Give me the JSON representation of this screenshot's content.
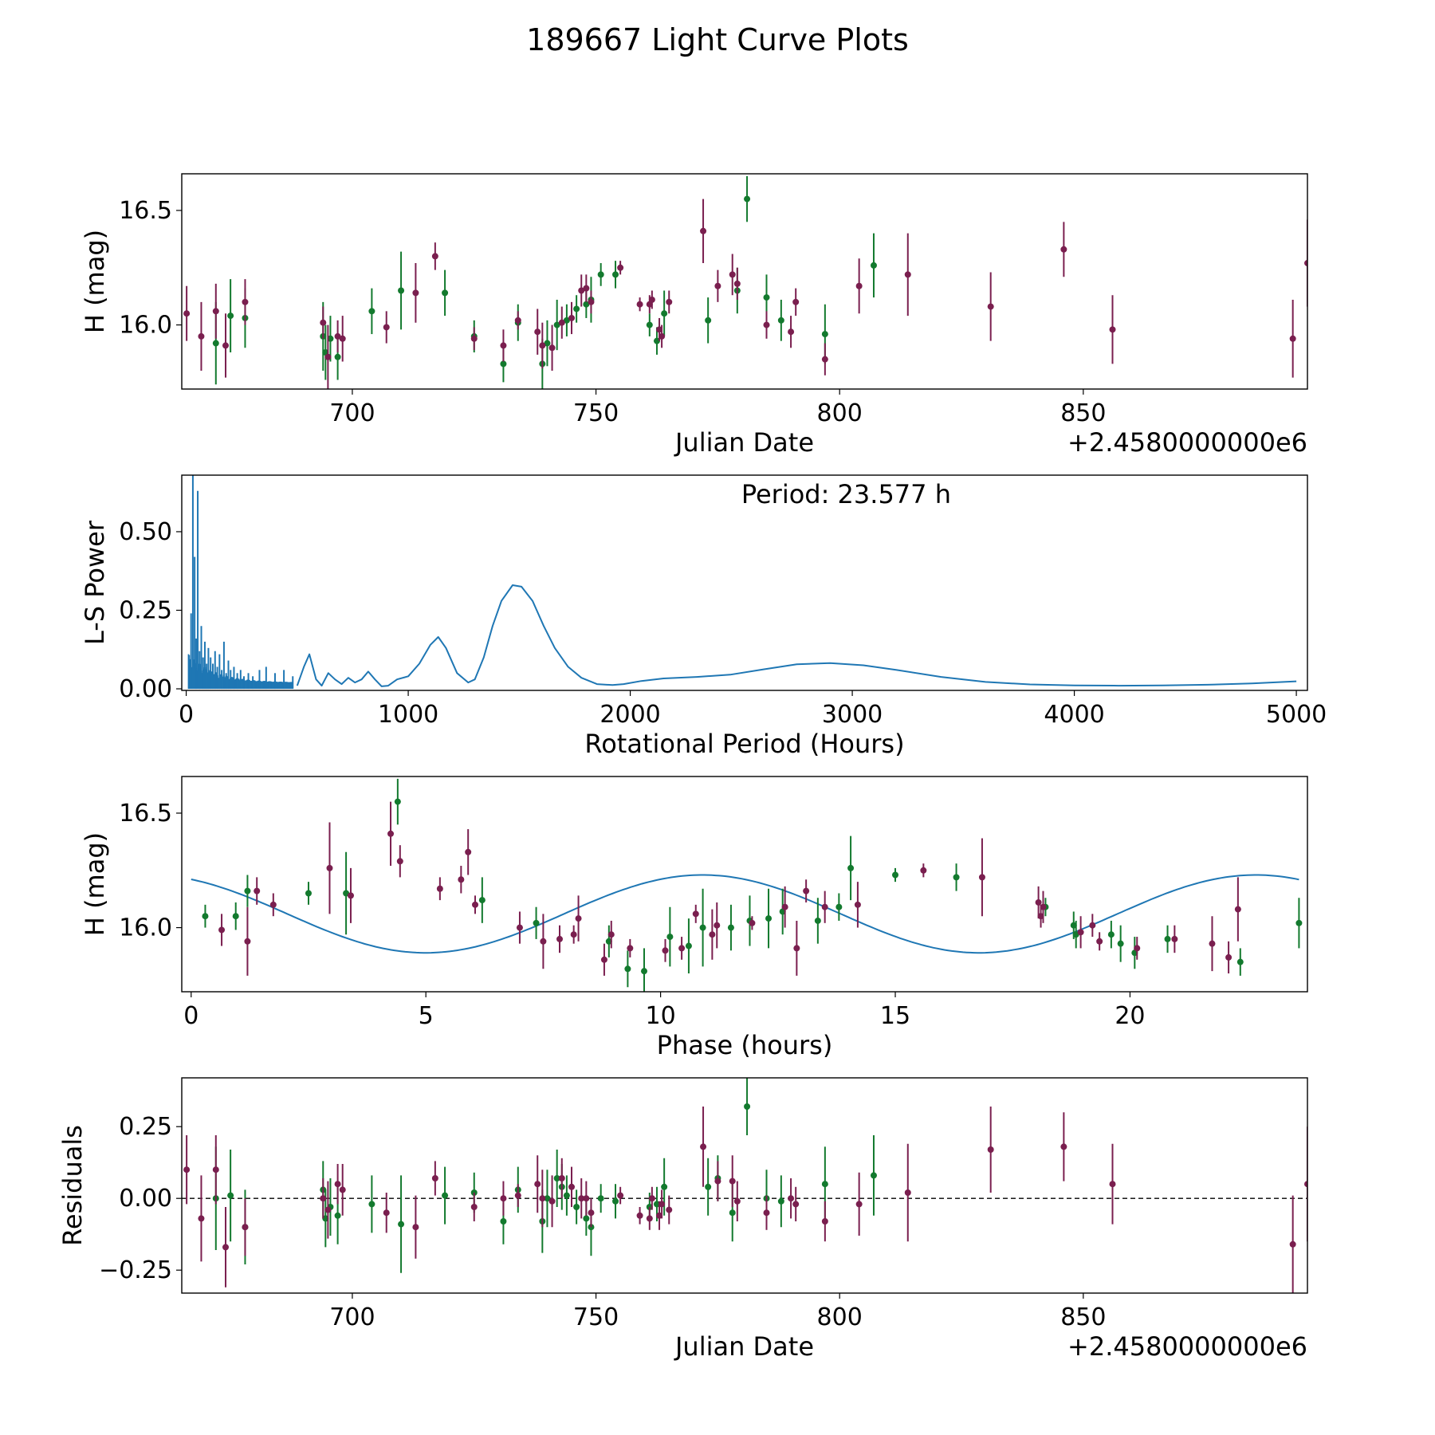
{
  "figure": {
    "title": "189667 Light Curve Plots"
  },
  "colors": {
    "green": "#137a2e",
    "maroon": "#7a1f4f",
    "curve": "#1f77b4",
    "axis": "#000000"
  },
  "chart_data": [
    {
      "id": "lightcurve",
      "type": "scatter",
      "xlabel": "Julian Date",
      "ylabel": "H (mag)",
      "offset_text": "+2.4580000000e6",
      "xlim": [
        665,
        896
      ],
      "ylim": [
        15.72,
        16.66
      ],
      "xticks": [
        700,
        750,
        800,
        850
      ],
      "yticks": [
        16.0,
        16.5
      ],
      "ytick_labels": [
        "16.0",
        "16.5"
      ],
      "series": [
        {
          "name": "green",
          "color": "#137a2e",
          "x": [
            672,
            675,
            678,
            694,
            694.5,
            695.5,
            697,
            704,
            710,
            719,
            725,
            731,
            734,
            739,
            740,
            742,
            744,
            746,
            748,
            749,
            751,
            754,
            761,
            762.5,
            764,
            773,
            779,
            781,
            785,
            788,
            797,
            807
          ],
          "y": [
            15.92,
            16.04,
            16.03,
            15.95,
            15.88,
            15.94,
            15.86,
            16.06,
            16.15,
            16.14,
            15.95,
            15.83,
            16.01,
            15.83,
            15.92,
            16.0,
            16.02,
            16.07,
            16.09,
            16.11,
            16.22,
            16.22,
            16.0,
            15.93,
            16.05,
            16.02,
            16.15,
            16.55,
            16.12,
            16.02,
            15.96,
            16.26
          ],
          "err": [
            0.18,
            0.16,
            0.13,
            0.15,
            0.12,
            0.1,
            0.1,
            0.1,
            0.17,
            0.1,
            0.07,
            0.08,
            0.08,
            0.11,
            0.1,
            0.11,
            0.07,
            0.06,
            0.06,
            0.1,
            0.05,
            0.06,
            0.05,
            0.06,
            0.1,
            0.1,
            0.1,
            0.1,
            0.1,
            0.09,
            0.13,
            0.14
          ]
        },
        {
          "name": "maroon",
          "color": "#7a1f4f",
          "x": [
            666,
            669,
            672,
            674,
            678,
            694,
            695,
            697,
            698,
            707,
            713,
            717,
            725,
            731,
            734,
            738,
            739,
            741,
            743,
            745,
            747,
            748,
            749,
            755,
            759,
            761,
            761.5,
            763,
            763.5,
            765,
            772,
            775,
            778,
            779,
            785,
            790,
            791,
            797,
            804,
            814,
            831,
            846,
            856,
            893,
            896
          ],
          "y": [
            16.05,
            15.95,
            16.06,
            15.91,
            16.1,
            16.01,
            15.86,
            15.95,
            15.94,
            15.99,
            16.14,
            16.3,
            15.94,
            15.91,
            16.02,
            15.97,
            15.91,
            15.9,
            16.01,
            16.03,
            16.15,
            16.16,
            16.1,
            16.25,
            16.09,
            16.09,
            16.11,
            15.98,
            15.95,
            16.1,
            16.41,
            16.17,
            16.22,
            16.18,
            16.0,
            15.97,
            16.1,
            15.85,
            16.17,
            16.22,
            16.08,
            16.33,
            15.98,
            15.94,
            16.27
          ],
          "err": [
            0.12,
            0.15,
            0.12,
            0.14,
            0.1,
            0.07,
            0.14,
            0.07,
            0.1,
            0.07,
            0.13,
            0.06,
            0.05,
            0.07,
            0.04,
            0.1,
            0.1,
            0.1,
            0.07,
            0.07,
            0.07,
            0.06,
            0.05,
            0.03,
            0.03,
            0.04,
            0.04,
            0.05,
            0.05,
            0.05,
            0.14,
            0.07,
            0.09,
            0.07,
            0.06,
            0.07,
            0.06,
            0.07,
            0.12,
            0.18,
            0.15,
            0.12,
            0.15,
            0.17,
            0.19
          ]
        }
      ]
    },
    {
      "id": "periodogram",
      "type": "line",
      "xlabel": "Rotational Period (Hours)",
      "ylabel": "L-S Power",
      "annotation": "Period: 23.577 h",
      "xlim": [
        -20,
        5050
      ],
      "ylim": [
        -0.005,
        0.68
      ],
      "xticks": [
        0,
        1000,
        2000,
        3000,
        4000,
        5000
      ],
      "yticks": [
        0.0,
        0.25,
        0.5
      ],
      "ytick_labels": [
        "0.00",
        "0.25",
        "0.50"
      ],
      "spike_x": [
        22,
        30,
        38,
        45,
        52,
        60,
        68,
        76,
        84,
        92,
        100,
        110,
        120,
        130,
        140,
        150,
        160,
        170,
        180,
        190,
        200,
        215,
        230,
        245,
        260,
        280,
        300,
        330,
        360,
        400,
        440,
        480
      ],
      "spike_y": [
        0.24,
        0.68,
        0.42,
        0.16,
        0.63,
        0.12,
        0.2,
        0.1,
        0.15,
        0.08,
        0.13,
        0.1,
        0.08,
        0.12,
        0.07,
        0.11,
        0.06,
        0.15,
        0.05,
        0.09,
        0.06,
        0.07,
        0.05,
        0.06,
        0.04,
        0.05,
        0.04,
        0.06,
        0.07,
        0.05,
        0.06,
        0.04
      ],
      "curve_x": [
        500,
        530,
        555,
        585,
        610,
        640,
        670,
        700,
        730,
        760,
        790,
        820,
        850,
        880,
        910,
        950,
        1000,
        1050,
        1100,
        1135,
        1170,
        1220,
        1270,
        1300,
        1340,
        1380,
        1420,
        1470,
        1510,
        1560,
        1610,
        1660,
        1720,
        1780,
        1850,
        1920,
        1970,
        2050,
        2150,
        2300,
        2450,
        2600,
        2750,
        2900,
        3050,
        3200,
        3400,
        3600,
        3800,
        4000,
        4200,
        4400,
        4600,
        4800,
        5000
      ],
      "curve_y": [
        0.01,
        0.07,
        0.11,
        0.03,
        0.01,
        0.05,
        0.03,
        0.015,
        0.035,
        0.02,
        0.03,
        0.055,
        0.03,
        0.008,
        0.01,
        0.03,
        0.04,
        0.08,
        0.14,
        0.165,
        0.13,
        0.05,
        0.02,
        0.03,
        0.1,
        0.2,
        0.28,
        0.33,
        0.325,
        0.28,
        0.2,
        0.13,
        0.07,
        0.035,
        0.015,
        0.012,
        0.015,
        0.025,
        0.033,
        0.038,
        0.045,
        0.062,
        0.078,
        0.082,
        0.075,
        0.06,
        0.038,
        0.022,
        0.014,
        0.011,
        0.01,
        0.011,
        0.013,
        0.017,
        0.024
      ]
    },
    {
      "id": "phased",
      "type": "scatter",
      "xlabel": "Phase (hours)",
      "ylabel": "H (mag)",
      "xlim": [
        -0.2,
        23.78
      ],
      "ylim": [
        15.72,
        16.66
      ],
      "xticks": [
        0,
        5,
        10,
        15,
        20
      ],
      "yticks": [
        16.0,
        16.5
      ],
      "ytick_labels": [
        "16.0",
        "16.5"
      ],
      "fit": {
        "mean": 16.06,
        "amplitude": 0.17,
        "period": 11.79,
        "zero_phase": 0.9
      },
      "series": [
        {
          "name": "green",
          "color": "#137a2e",
          "x": [
            0.3,
            0.95,
            1.2,
            2.5,
            3.3,
            4.4,
            6.2,
            7.35,
            8.9,
            9.3,
            9.65,
            10.2,
            10.6,
            10.9,
            11.5,
            11.9,
            12.3,
            12.6,
            13.35,
            13.8,
            14.05,
            15.0,
            16.3,
            18.2,
            18.8,
            18.85,
            19.6,
            19.8,
            20.1,
            20.8,
            22.35,
            23.6
          ],
          "y": [
            16.05,
            16.05,
            16.16,
            16.15,
            16.15,
            16.55,
            16.12,
            16.02,
            15.94,
            15.82,
            15.81,
            15.96,
            15.92,
            16.0,
            16.0,
            16.03,
            16.04,
            16.07,
            16.03,
            16.09,
            16.26,
            16.23,
            16.22,
            16.09,
            16.01,
            15.97,
            15.97,
            15.93,
            15.89,
            15.95,
            15.85,
            16.02
          ],
          "err": [
            0.05,
            0.06,
            0.07,
            0.05,
            0.18,
            0.1,
            0.1,
            0.07,
            0.07,
            0.08,
            0.1,
            0.13,
            0.12,
            0.17,
            0.1,
            0.11,
            0.13,
            0.1,
            0.1,
            0.06,
            0.14,
            0.03,
            0.06,
            0.04,
            0.06,
            0.06,
            0.06,
            0.08,
            0.07,
            0.06,
            0.06,
            0.11
          ]
        },
        {
          "name": "maroon",
          "color": "#7a1f4f",
          "x": [
            0.65,
            1.2,
            1.4,
            1.75,
            2.95,
            3.4,
            4.25,
            4.45,
            5.3,
            5.75,
            5.9,
            6.05,
            7.0,
            7.5,
            7.85,
            8.15,
            8.25,
            8.8,
            8.95,
            9.35,
            10.1,
            10.45,
            10.75,
            11.1,
            11.2,
            11.95,
            12.65,
            12.9,
            13.1,
            13.5,
            14.2,
            15.6,
            16.85,
            18.05,
            18.1,
            18.15,
            18.95,
            19.2,
            19.35,
            20.15,
            20.95,
            21.75,
            22.1,
            22.3
          ],
          "y": [
            15.99,
            15.94,
            16.16,
            16.1,
            16.26,
            16.14,
            16.41,
            16.29,
            16.17,
            16.21,
            16.33,
            16.1,
            16.0,
            15.94,
            15.95,
            15.97,
            16.04,
            15.86,
            15.97,
            15.91,
            15.9,
            15.91,
            16.06,
            15.97,
            16.01,
            16.02,
            16.09,
            15.91,
            16.16,
            16.09,
            16.1,
            16.25,
            16.22,
            16.11,
            16.05,
            16.09,
            15.98,
            16.01,
            15.94,
            15.91,
            15.95,
            15.93,
            15.87,
            16.08
          ],
          "err": [
            0.07,
            0.15,
            0.06,
            0.05,
            0.2,
            0.12,
            0.14,
            0.07,
            0.05,
            0.06,
            0.1,
            0.04,
            0.07,
            0.12,
            0.06,
            0.04,
            0.1,
            0.07,
            0.06,
            0.04,
            0.05,
            0.05,
            0.04,
            0.11,
            0.1,
            0.03,
            0.09,
            0.12,
            0.05,
            0.07,
            0.1,
            0.03,
            0.17,
            0.07,
            0.05,
            0.07,
            0.07,
            0.05,
            0.04,
            0.05,
            0.06,
            0.12,
            0.07,
            0.14
          ]
        }
      ]
    },
    {
      "id": "residuals",
      "type": "scatter",
      "xlabel": "Julian Date",
      "ylabel": "Residuals",
      "offset_text": "+2.4580000000e6",
      "xlim": [
        665,
        896
      ],
      "ylim": [
        -0.33,
        0.42
      ],
      "xticks": [
        700,
        750,
        800,
        850
      ],
      "yticks": [
        -0.25,
        0.0,
        0.25
      ],
      "ytick_labels": [
        "−0.25",
        "0.00",
        "0.25"
      ],
      "zero_line": true,
      "series": [
        {
          "name": "green",
          "color": "#137a2e",
          "x": [
            672,
            675,
            678,
            694,
            694.5,
            695.5,
            697,
            704,
            710,
            719,
            725,
            731,
            734,
            739,
            740,
            742,
            743,
            744,
            746,
            748,
            749,
            751,
            754,
            761,
            762.5,
            764,
            773,
            775,
            778,
            781,
            785,
            788,
            797,
            807
          ],
          "y": [
            0.0,
            0.01,
            -0.1,
            0.03,
            -0.07,
            -0.03,
            -0.06,
            -0.02,
            -0.09,
            0.01,
            0.02,
            -0.08,
            0.03,
            -0.08,
            0.0,
            0.07,
            0.04,
            0.01,
            -0.03,
            -0.07,
            -0.1,
            0.0,
            -0.01,
            -0.03,
            -0.02,
            0.04,
            0.04,
            0.07,
            -0.05,
            0.32,
            0.0,
            -0.01,
            0.05,
            0.08
          ],
          "err": [
            0.18,
            0.16,
            0.13,
            0.1,
            0.1,
            0.1,
            0.1,
            0.1,
            0.17,
            0.1,
            0.07,
            0.08,
            0.08,
            0.11,
            0.1,
            0.1,
            0.08,
            0.07,
            0.06,
            0.06,
            0.1,
            0.05,
            0.06,
            0.05,
            0.06,
            0.1,
            0.1,
            0.08,
            0.1,
            0.1,
            0.1,
            0.09,
            0.13,
            0.14
          ]
        },
        {
          "name": "maroon",
          "color": "#7a1f4f",
          "x": [
            666,
            669,
            672,
            674,
            678,
            694,
            695,
            697,
            698,
            707,
            713,
            717,
            725,
            731,
            734,
            738,
            739,
            741,
            743,
            745,
            747,
            748,
            749,
            755,
            759,
            761,
            761.5,
            763,
            763.5,
            765,
            772,
            775,
            778,
            779,
            785,
            790,
            791,
            797,
            804,
            814,
            831,
            846,
            856,
            893,
            896
          ],
          "y": [
            0.1,
            -0.07,
            0.1,
            -0.17,
            -0.1,
            0.0,
            -0.04,
            0.05,
            0.03,
            -0.05,
            -0.1,
            0.07,
            -0.03,
            0.0,
            0.01,
            0.05,
            0.0,
            -0.01,
            0.07,
            0.04,
            0.0,
            0.0,
            -0.05,
            0.01,
            -0.06,
            -0.07,
            0.0,
            -0.06,
            -0.02,
            -0.04,
            0.18,
            0.06,
            0.06,
            -0.01,
            -0.05,
            0.0,
            -0.02,
            -0.08,
            -0.02,
            0.02,
            0.17,
            0.18,
            0.05,
            -0.16,
            0.05
          ],
          "err": [
            0.12,
            0.15,
            0.12,
            0.14,
            0.1,
            0.07,
            0.1,
            0.07,
            0.09,
            0.07,
            0.11,
            0.06,
            0.05,
            0.06,
            0.04,
            0.1,
            0.1,
            0.09,
            0.07,
            0.07,
            0.07,
            0.06,
            0.05,
            0.03,
            0.03,
            0.04,
            0.04,
            0.05,
            0.05,
            0.05,
            0.14,
            0.07,
            0.09,
            0.07,
            0.06,
            0.07,
            0.06,
            0.07,
            0.11,
            0.17,
            0.15,
            0.12,
            0.14,
            0.17,
            0.2
          ]
        }
      ]
    }
  ]
}
